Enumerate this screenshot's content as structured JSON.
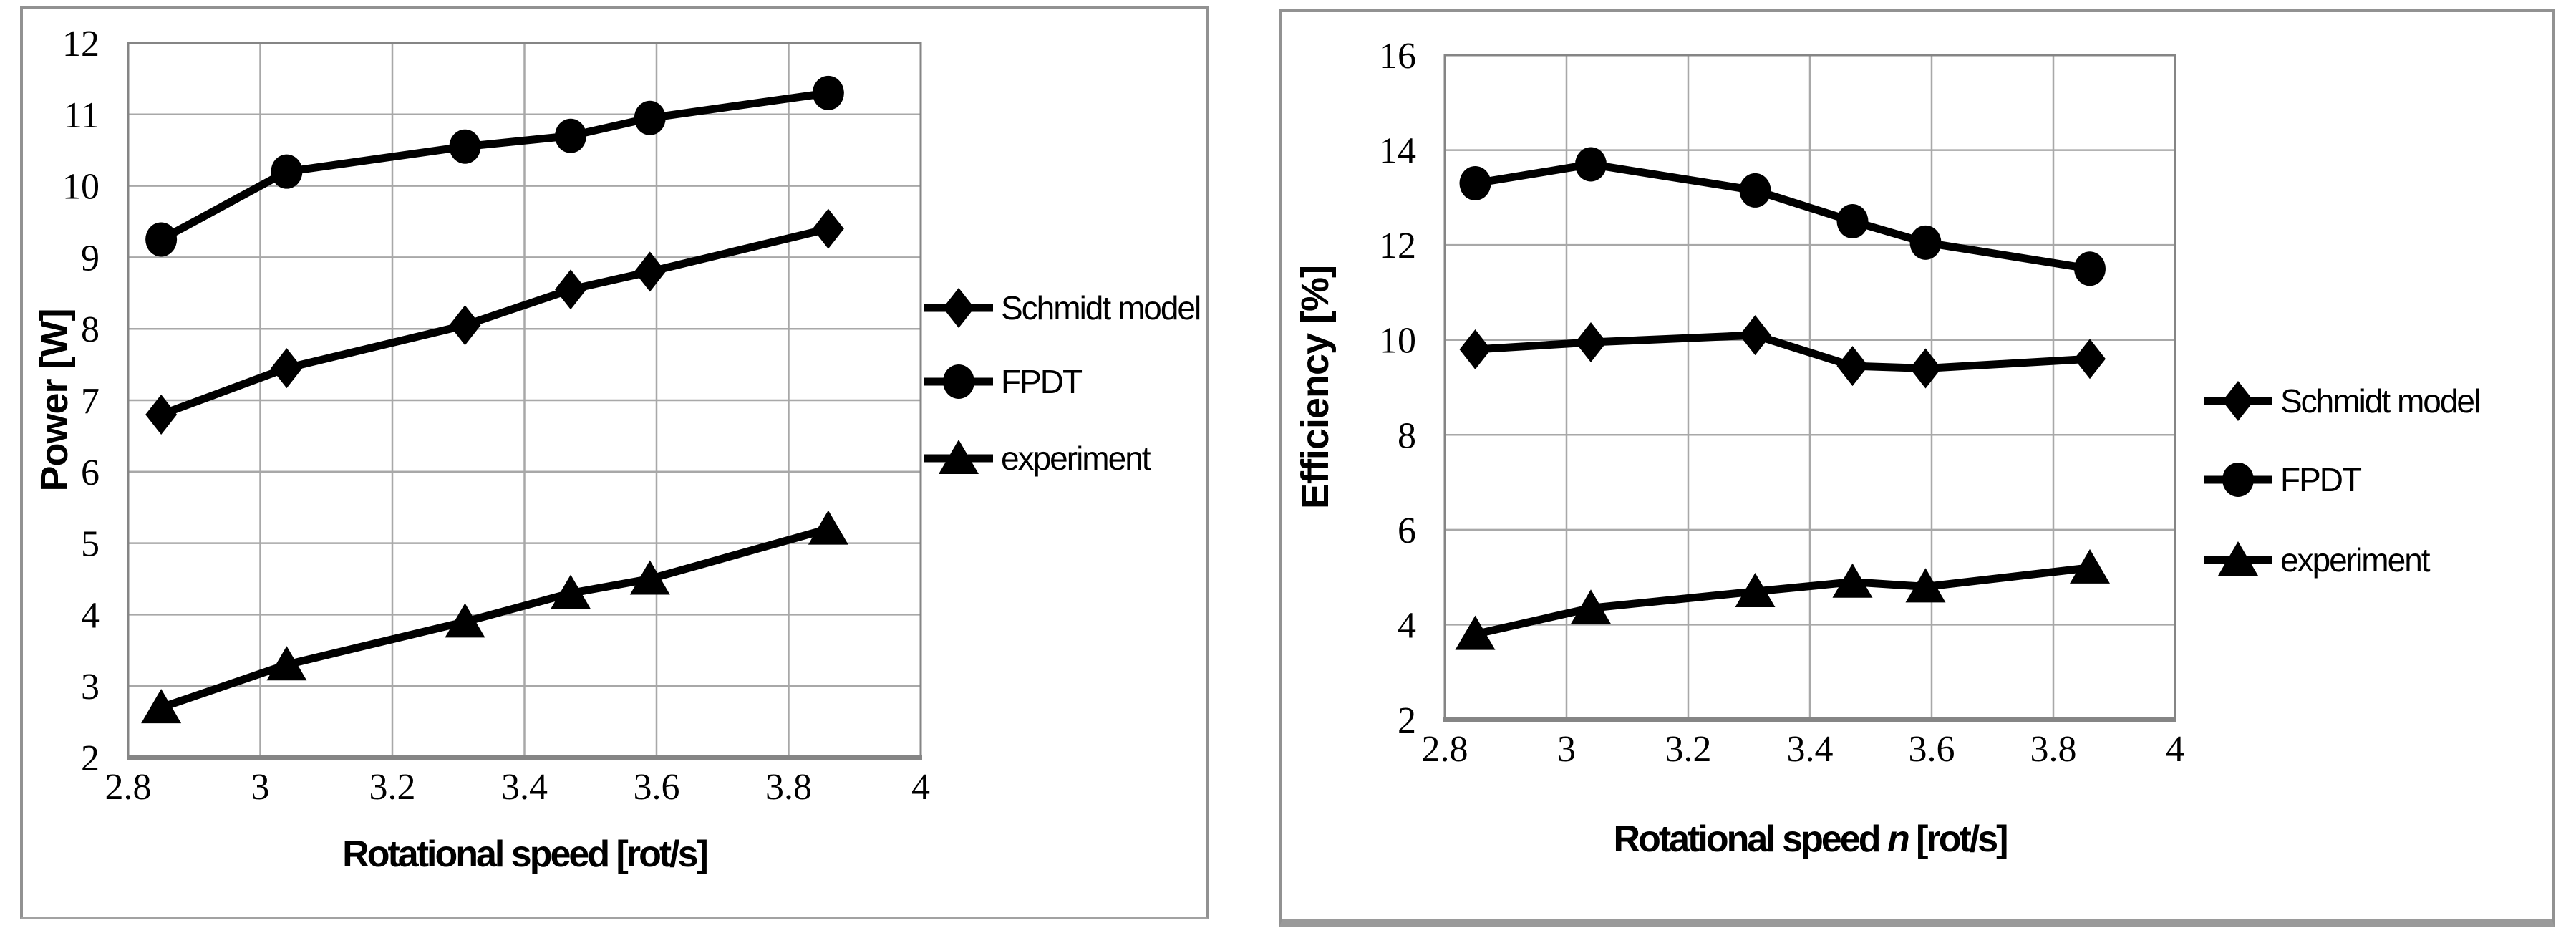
{
  "figure": {
    "background": "#ffffff",
    "panel_border_color": "#929292",
    "grid_color": "#a8a8a8",
    "axis_frame_color": "#858585",
    "series_color": "#000000",
    "text_color": "#000000"
  },
  "chart_data": [
    {
      "type": "line",
      "title": "",
      "xlabel_parts": [
        {
          "text": "Rotational speed [rot/s]",
          "italic": false
        }
      ],
      "ylabel": "Power [W]",
      "xlim": [
        2.8,
        4.0
      ],
      "ylim": [
        2,
        12
      ],
      "xtick_values": [
        2.8,
        3.0,
        3.2,
        3.4,
        3.6,
        3.8,
        4.0
      ],
      "xtick_labels": [
        "2.8",
        "3",
        "3.2",
        "3.4",
        "3.6",
        "3.8",
        "4"
      ],
      "ytick_values": [
        2,
        3,
        4,
        5,
        6,
        7,
        8,
        9,
        10,
        11,
        12
      ],
      "ytick_labels": [
        "2",
        "3",
        "4",
        "5",
        "6",
        "7",
        "8",
        "9",
        "10",
        "11",
        "12"
      ],
      "grid": true,
      "legend_position": "right",
      "x": [
        2.85,
        3.04,
        3.31,
        3.47,
        3.59,
        3.86
      ],
      "series": [
        {
          "name": "Schmidt model",
          "marker": "diamond",
          "values": [
            6.8,
            7.45,
            8.05,
            8.55,
            8.8,
            9.4
          ]
        },
        {
          "name": "FPDT",
          "marker": "circle",
          "values": [
            9.25,
            10.2,
            10.55,
            10.7,
            10.95,
            11.3
          ]
        },
        {
          "name": "experiment",
          "marker": "triangle",
          "values": [
            2.7,
            3.3,
            3.9,
            4.3,
            4.5,
            5.2
          ]
        }
      ]
    },
    {
      "type": "line",
      "title": "",
      "xlabel_parts": [
        {
          "text": "Rotational speed ",
          "italic": false
        },
        {
          "text": "n",
          "italic": true
        },
        {
          "text": " [rot/s]",
          "italic": false
        }
      ],
      "ylabel": "Efficiency [%]",
      "xlim": [
        2.8,
        4.0
      ],
      "ylim": [
        2,
        16
      ],
      "xtick_values": [
        2.8,
        3.0,
        3.2,
        3.4,
        3.6,
        3.8,
        4.0
      ],
      "xtick_labels": [
        "2.8",
        "3",
        "3.2",
        "3.4",
        "3.6",
        "3.8",
        "4"
      ],
      "ytick_values": [
        2,
        4,
        6,
        8,
        10,
        12,
        14,
        16
      ],
      "ytick_labels": [
        "2",
        "4",
        "6",
        "8",
        "10",
        "12",
        "14",
        "16"
      ],
      "grid": true,
      "legend_position": "right",
      "x": [
        2.85,
        3.04,
        3.31,
        3.47,
        3.59,
        3.86
      ],
      "series": [
        {
          "name": "Schmidt model",
          "marker": "diamond",
          "values": [
            9.8,
            9.95,
            10.1,
            9.45,
            9.4,
            9.6
          ]
        },
        {
          "name": "FPDT",
          "marker": "circle",
          "values": [
            13.3,
            13.7,
            13.15,
            12.5,
            12.05,
            11.5
          ]
        },
        {
          "name": "experiment",
          "marker": "triangle",
          "values": [
            3.8,
            4.35,
            4.7,
            4.9,
            4.8,
            5.2
          ]
        }
      ]
    }
  ]
}
